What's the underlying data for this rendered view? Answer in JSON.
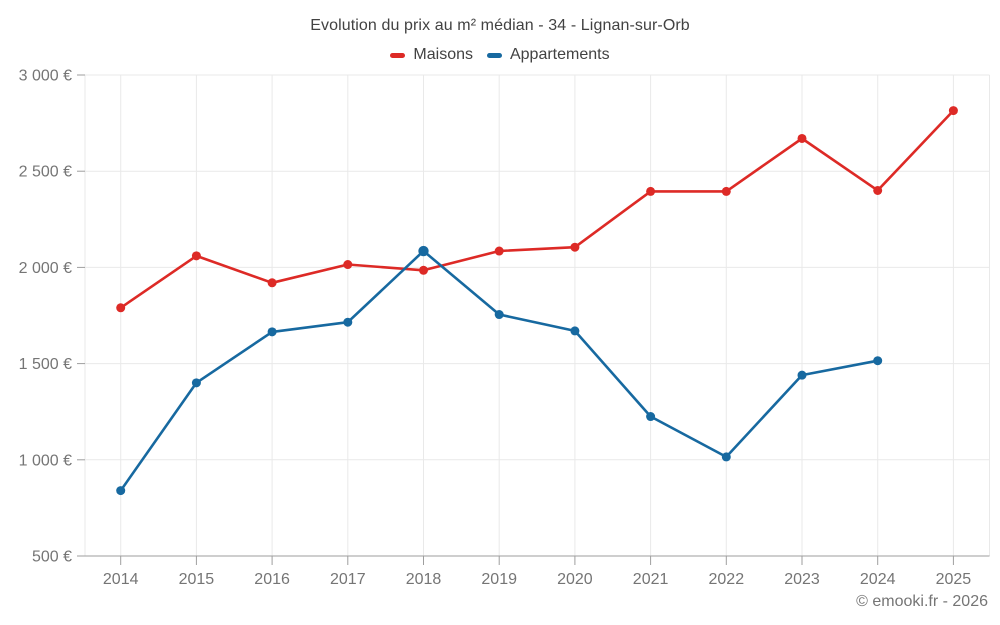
{
  "chart_data": {
    "type": "line",
    "title": "Evolution du prix au m² médian - 34 - Lignan-sur-Orb",
    "footer": "© emooki.fr - 2026",
    "categories": [
      "2014",
      "2015",
      "2016",
      "2017",
      "2018",
      "2019",
      "2020",
      "2021",
      "2022",
      "2023",
      "2024",
      "2025"
    ],
    "series": [
      {
        "name": "Maisons",
        "color": "#dd2a26",
        "values": [
          1790,
          2060,
          1920,
          2015,
          1985,
          2085,
          2105,
          2395,
          2395,
          2670,
          2400,
          2815
        ],
        "marker_radius": 4.5,
        "marker_radius_overrides": {}
      },
      {
        "name": "Appartements",
        "color": "#1769a0",
        "values": [
          840,
          1400,
          1665,
          1715,
          2085,
          1755,
          1670,
          1225,
          1015,
          1440,
          1515,
          null
        ],
        "marker_radius": 4.5,
        "marker_radius_overrides": {
          "2018": 5.2
        }
      }
    ],
    "xlabel": "",
    "ylabel": "",
    "ylim": [
      500,
      3000
    ],
    "yticks": {
      "values": [
        3000,
        2500,
        2000,
        1500,
        1000,
        500
      ],
      "labels": [
        "3 000 €",
        "2 500 €",
        "2 000 €",
        "1 500 €",
        "1 000 €",
        "500 €"
      ]
    },
    "grid": true,
    "legend_position": "top",
    "colors": {
      "gridline": "#e9e9e9",
      "axis": "#9e9e9e",
      "tick_label": "#757575",
      "title_text": "#424242"
    }
  }
}
